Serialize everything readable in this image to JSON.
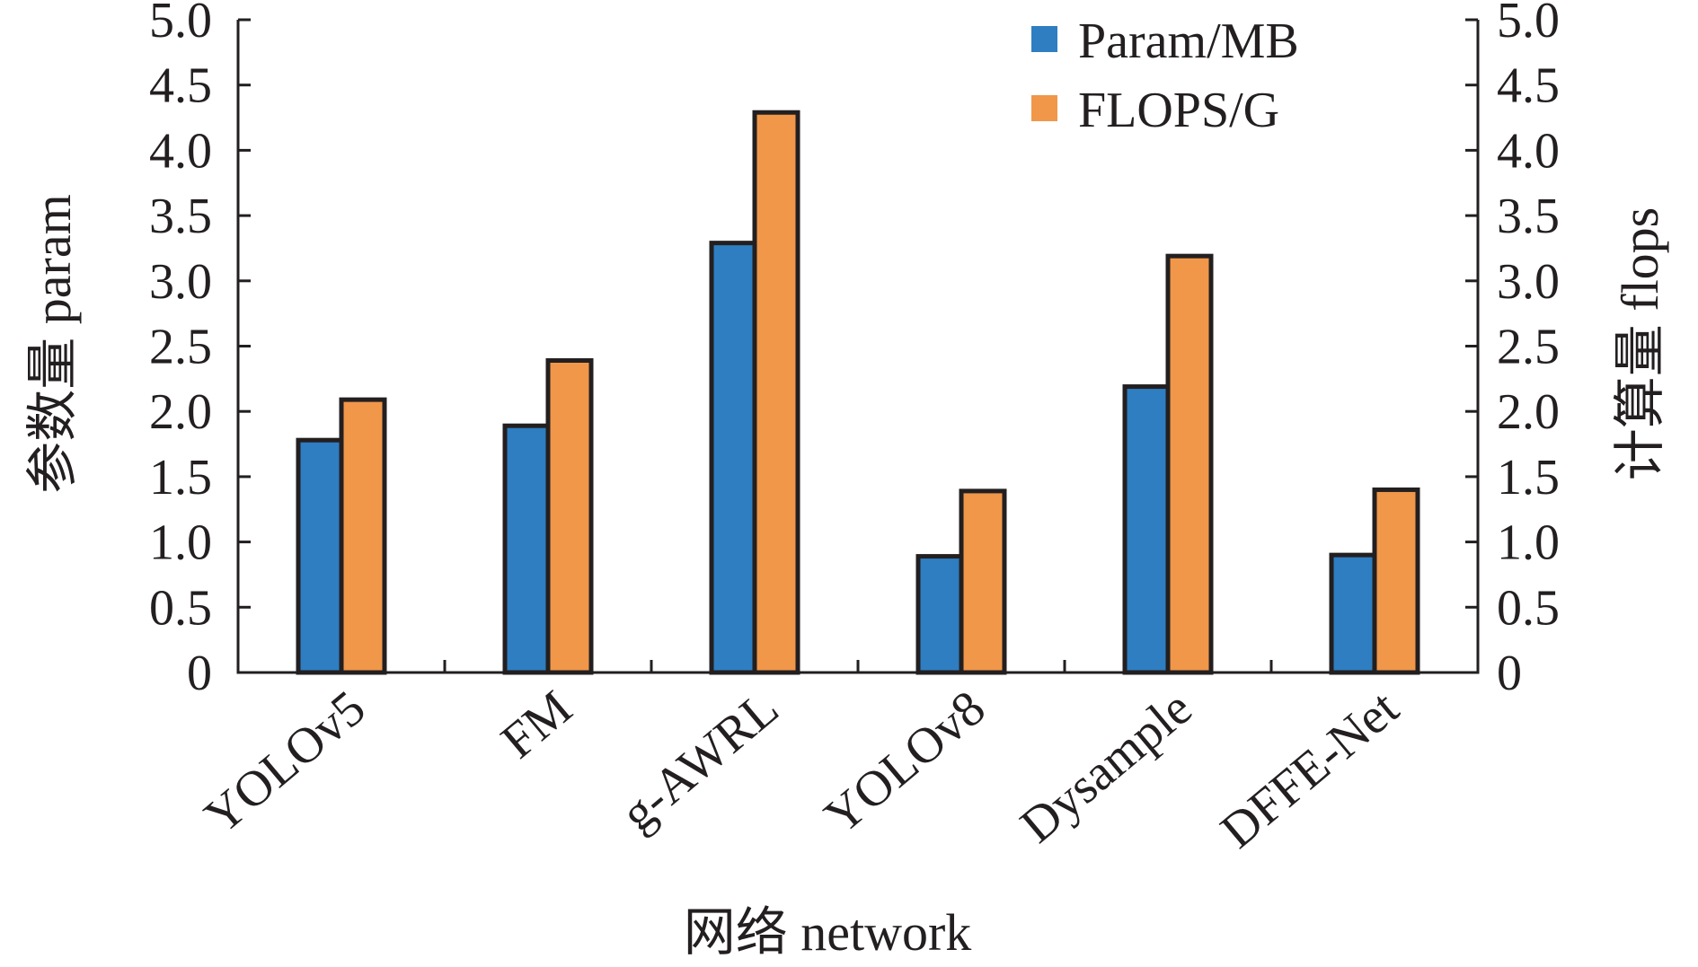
{
  "chart_data": {
    "type": "bar",
    "categories": [
      "YOLOv5",
      "FM",
      "g-AWRL",
      "YOLOv8",
      "Dysample",
      "DFFE-Net"
    ],
    "series": [
      {
        "name": "Param/MB",
        "color": "#2e7ec1",
        "values": [
          1.78,
          1.89,
          3.29,
          0.89,
          2.19,
          0.9
        ]
      },
      {
        "name": "FLOPS/G",
        "color": "#f0974a",
        "values": [
          2.09,
          2.39,
          4.29,
          1.39,
          3.19,
          1.4
        ]
      }
    ],
    "xlabel": "网络 network",
    "ylabel_left": "参数量 param",
    "ylabel_right": "计算量 flops",
    "ylim": [
      0,
      5.0
    ],
    "yticks": [
      "0",
      "0.5",
      "1.0",
      "1.5",
      "2.0",
      "2.5",
      "3.0",
      "3.5",
      "4.0",
      "4.5",
      "5.0"
    ],
    "grid": false,
    "legend_position": "top-right"
  }
}
